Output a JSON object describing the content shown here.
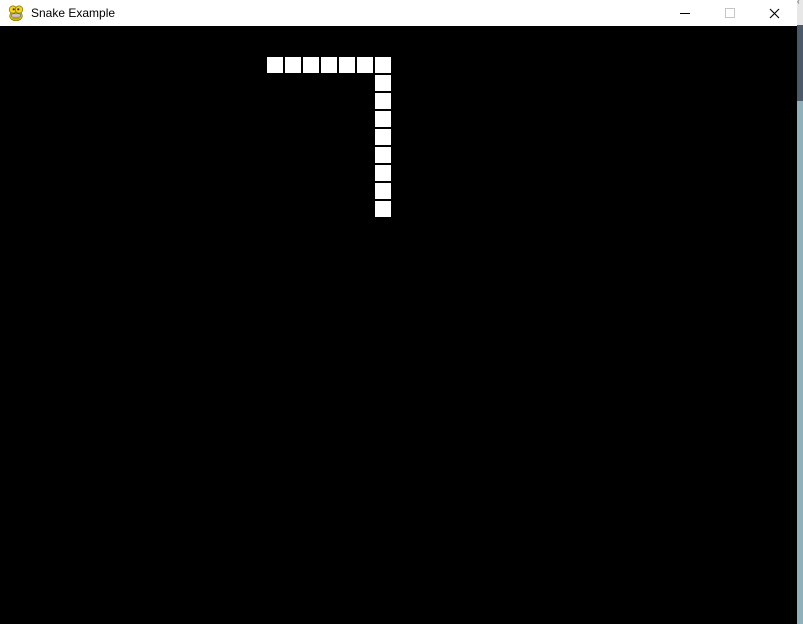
{
  "window": {
    "title": "Snake Example",
    "app_icon": "pygame-snake-icon",
    "controls": {
      "minimize_label": "Minimize",
      "maximize_label": "Maximize",
      "close_label": "Close"
    },
    "titlebar_color": "#ffffff",
    "title_text_color": "#000000"
  },
  "game": {
    "background_color": "#000000",
    "snake": {
      "color": "#ffffff",
      "segment_size": 16,
      "segment_count": 15,
      "segments": [
        [
          267,
          57
        ],
        [
          285,
          57
        ],
        [
          303,
          57
        ],
        [
          321,
          57
        ],
        [
          339,
          57
        ],
        [
          357,
          57
        ],
        [
          375,
          57
        ],
        [
          375,
          75
        ],
        [
          375,
          93
        ],
        [
          375,
          111
        ],
        [
          375,
          129
        ],
        [
          375,
          147
        ],
        [
          375,
          165
        ],
        [
          375,
          183
        ],
        [
          375,
          201
        ]
      ]
    }
  },
  "background_window_scrollbar": {
    "top_color": "#e7e7e7",
    "thumb_color": "#4a5a6c",
    "track_color": "#8fb1bd",
    "chevron_glyph": "‹"
  }
}
